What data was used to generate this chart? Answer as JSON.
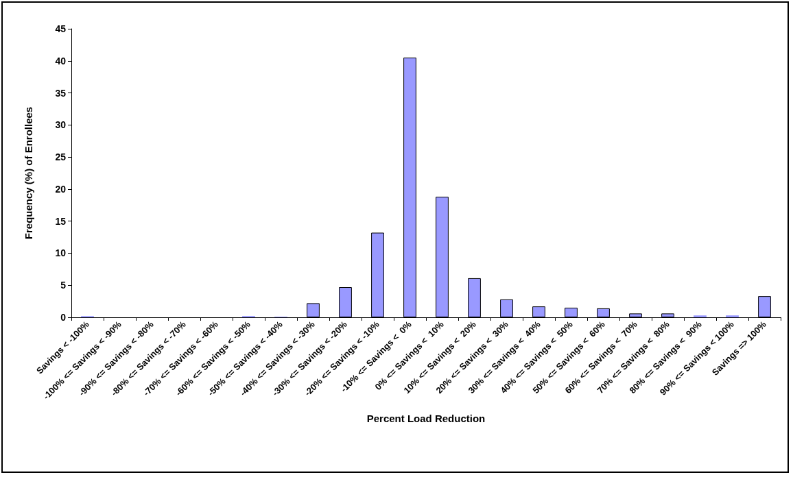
{
  "chart_data": {
    "type": "bar",
    "xlabel": "Percent Load Reduction",
    "ylabel": "Frequency (%) of Enrollees",
    "categories": [
      "Savings < -100%",
      "-100% <= Savings < -90%",
      "-90% <= Savings < -80%",
      "-80% <= Savings < -70%",
      "-70% <= Savings < -60%",
      "-60% <= Savings < -50%",
      "-50% <= Savings < -40%",
      "-40% <= Savings < -30%",
      "-30% <= Savings < -20%",
      "-20% <= Savings < -10%",
      "-10% <= Savings <  0%",
      "0% <= Savings <  10%",
      "10% <= Savings <  20%",
      "20% <= Savings <  30%",
      "30% <= Savings <  40%",
      "40% <= Savings <  50%",
      "50% <= Savings <  60%",
      "60% <= Savings <  70%",
      "70% <= Savings <  80%",
      "80% <= Savings <  90%",
      "90% <= Savings < 100%",
      "Savings => 100%"
    ],
    "values": [
      0.2,
      0,
      0,
      0,
      0,
      0.2,
      0.1,
      2.2,
      4.7,
      13.2,
      40.5,
      18.8,
      6.1,
      2.8,
      1.7,
      1.5,
      1.4,
      0.6,
      0.6,
      0.3,
      0.3,
      3.3
    ],
    "color": "#9999ff",
    "ylim": [
      0,
      45
    ],
    "yticks": [
      0,
      5,
      10,
      15,
      20,
      25,
      30,
      35,
      40,
      45
    ],
    "grid": false
  }
}
